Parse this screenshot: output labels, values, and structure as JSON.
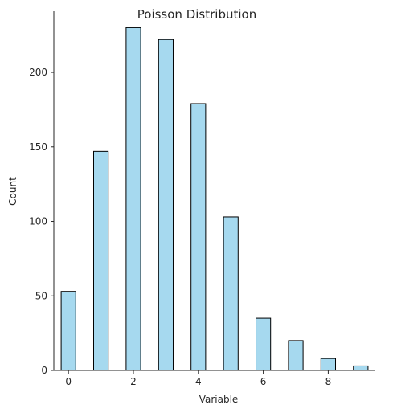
{
  "chart_data": {
    "type": "bar",
    "title": "Poisson Distribution",
    "xlabel": "Variable",
    "ylabel": "Count",
    "x_ticks": [
      0,
      2,
      4,
      6,
      8
    ],
    "y_ticks": [
      0,
      50,
      100,
      150,
      200
    ],
    "xlim": [
      -0.45,
      9.45
    ],
    "ylim": [
      0,
      241
    ],
    "bar_width": 0.45,
    "grid": false,
    "bar_color": "#a6d9ef",
    "edge_color": "#000000",
    "bars": [
      {
        "x": 0,
        "value": 53
      },
      {
        "x": 1,
        "value": 147
      },
      {
        "x": 2,
        "value": 230
      },
      {
        "x": 3,
        "value": 222
      },
      {
        "x": 4,
        "value": 179
      },
      {
        "x": 5,
        "value": 103
      },
      {
        "x": 6,
        "value": 35
      },
      {
        "x": 7,
        "value": 20
      },
      {
        "x": 8,
        "value": 8
      },
      {
        "x": 9,
        "value": 3
      }
    ]
  }
}
